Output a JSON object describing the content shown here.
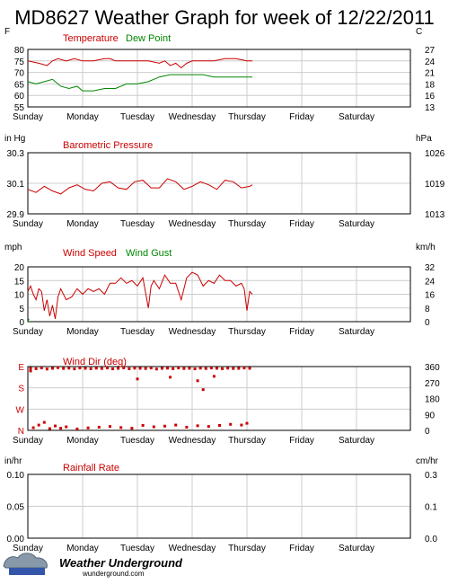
{
  "title": "MD8627 Weather Graph for week of 12/22/2011",
  "colors": {
    "red": "#cc0000",
    "green": "#008800",
    "grid": "#cccccc",
    "frame": "#000000"
  },
  "branding": {
    "name": "Weather Underground",
    "url": "wunderground.com"
  },
  "chart_data": [
    {
      "type": "line",
      "id": "temp",
      "left_unit": "F",
      "right_unit": "C",
      "series_labels": [
        "Temperature",
        "Dew Point"
      ],
      "ylim": [
        55,
        80
      ],
      "y_ticks": [
        "55",
        "60",
        "65",
        "70",
        "75",
        "80"
      ],
      "right_ticks": [
        "13",
        "16",
        "18",
        "21",
        "24",
        "27"
      ],
      "x_tick_labels": [
        "Sunday",
        "Monday",
        "Tuesday",
        "Wednesday",
        "Thursday",
        "Friday",
        "Saturday"
      ],
      "grid": true,
      "series": [
        {
          "name": "Temperature",
          "color": "#cc0000",
          "x": [
            0,
            0.2,
            0.35,
            0.45,
            0.55,
            0.7,
            0.85,
            1.0,
            1.2,
            1.4,
            1.5,
            1.6,
            1.8,
            2.0,
            2.2,
            2.4,
            2.5,
            2.6,
            2.7,
            2.8,
            2.9,
            3.0,
            3.2,
            3.4,
            3.6,
            3.8,
            4.0,
            4.1
          ],
          "y": [
            75,
            74,
            73,
            75,
            76,
            75,
            76,
            75,
            75,
            76,
            76,
            75,
            75,
            75,
            75,
            74,
            75,
            73,
            74,
            72,
            74,
            75,
            75,
            75,
            76,
            76,
            75,
            75
          ]
        },
        {
          "name": "Dew Point",
          "color": "#008800",
          "x": [
            0,
            0.15,
            0.3,
            0.45,
            0.6,
            0.75,
            0.9,
            1.0,
            1.2,
            1.4,
            1.6,
            1.8,
            2.0,
            2.2,
            2.4,
            2.6,
            2.8,
            3.0,
            3.2,
            3.4,
            3.6,
            3.8,
            4.0,
            4.1
          ],
          "y": [
            66,
            65,
            66,
            67,
            64,
            63,
            64,
            62,
            62,
            63,
            63,
            65,
            65,
            66,
            68,
            69,
            69,
            69,
            69,
            68,
            68,
            68,
            68,
            68
          ]
        }
      ]
    },
    {
      "type": "line",
      "id": "pressure",
      "left_unit": "in Hg",
      "right_unit": "hPa",
      "series_labels": [
        "Barometric Pressure"
      ],
      "ylim": [
        29.9,
        30.3
      ],
      "y_ticks": [
        "29.9",
        "30.1",
        "30.3"
      ],
      "right_ticks": [
        "1013",
        "1019",
        "1026"
      ],
      "x_tick_labels": [
        "Sunday",
        "Monday",
        "Tuesday",
        "Wednesday",
        "Thursday",
        "Friday",
        "Saturday"
      ],
      "grid": true,
      "series": [
        {
          "name": "Barometric Pressure",
          "color": "#cc0000",
          "x": [
            0,
            0.15,
            0.3,
            0.45,
            0.6,
            0.75,
            0.9,
            1.05,
            1.2,
            1.35,
            1.5,
            1.65,
            1.8,
            1.95,
            2.1,
            2.25,
            2.4,
            2.55,
            2.7,
            2.85,
            3.0,
            3.15,
            3.3,
            3.45,
            3.6,
            3.75,
            3.9,
            4.05,
            4.1
          ],
          "y": [
            30.06,
            30.04,
            30.08,
            30.05,
            30.03,
            30.07,
            30.09,
            30.06,
            30.05,
            30.1,
            30.11,
            30.07,
            30.06,
            30.11,
            30.12,
            30.07,
            30.07,
            30.13,
            30.11,
            30.06,
            30.08,
            30.11,
            30.09,
            30.06,
            30.12,
            30.11,
            30.07,
            30.08,
            30.09
          ]
        }
      ]
    },
    {
      "type": "line",
      "id": "wind",
      "left_unit": "mph",
      "right_unit": "km/h",
      "series_labels": [
        "Wind Speed",
        "Wind Gust"
      ],
      "ylim": [
        0,
        20
      ],
      "y_ticks": [
        "0",
        "5",
        "10",
        "15",
        "20"
      ],
      "right_ticks": [
        "0",
        "8",
        "16",
        "24",
        "32"
      ],
      "x_tick_labels": [
        "Sunday",
        "Monday",
        "Tuesday",
        "Wednesday",
        "Thursday",
        "Friday",
        "Saturday"
      ],
      "grid": true,
      "series": [
        {
          "name": "Wind Speed",
          "color": "#cc0000",
          "x": [
            0,
            0.05,
            0.1,
            0.15,
            0.2,
            0.25,
            0.3,
            0.35,
            0.4,
            0.45,
            0.5,
            0.55,
            0.6,
            0.7,
            0.8,
            0.9,
            1.0,
            1.1,
            1.2,
            1.3,
            1.4,
            1.5,
            1.6,
            1.7,
            1.8,
            1.9,
            2.0,
            2.1,
            2.2,
            2.25,
            2.3,
            2.4,
            2.5,
            2.6,
            2.7,
            2.8,
            2.9,
            3.0,
            3.1,
            3.2,
            3.3,
            3.4,
            3.5,
            3.6,
            3.7,
            3.8,
            3.9,
            3.95,
            4.0,
            4.05,
            4.1
          ],
          "y": [
            11,
            13,
            10,
            8,
            12,
            11,
            4,
            8,
            2,
            6,
            1,
            9,
            12,
            8,
            9,
            12,
            10,
            12,
            11,
            12,
            10,
            14,
            14,
            16,
            14,
            15,
            13,
            16,
            5,
            13,
            15,
            12,
            17,
            14,
            14,
            8,
            16,
            18,
            17,
            13,
            15,
            14,
            17,
            15,
            15,
            13,
            14,
            12,
            4,
            11,
            10
          ]
        },
        {
          "name": "Wind Gust",
          "color": "#008800",
          "x": [
            0,
            0.02
          ],
          "y": [
            0,
            1
          ]
        }
      ]
    },
    {
      "type": "scatter",
      "id": "winddir",
      "left_unit": "",
      "right_unit": "",
      "series_labels": [
        "Wind Dir (deg)"
      ],
      "ylim": [
        0,
        360
      ],
      "y_ticks": [
        "N",
        "W",
        "S",
        "E"
      ],
      "right_ticks": [
        "0",
        "90",
        "180",
        "270",
        "360"
      ],
      "x_tick_labels": [
        "Sunday",
        "Monday",
        "Tuesday",
        "Wednesday",
        "Thursday",
        "Friday",
        "Saturday"
      ],
      "grid": true,
      "series": [
        {
          "name": "Wind Dir (deg)",
          "color": "#cc0000",
          "x": [
            0.05,
            0.15,
            0.25,
            0.35,
            0.45,
            0.55,
            0.65,
            0.75,
            0.85,
            0.95,
            1.05,
            1.15,
            1.25,
            1.35,
            1.45,
            1.55,
            1.65,
            1.75,
            1.85,
            1.95,
            2.05,
            2.15,
            2.25,
            2.35,
            2.45,
            2.55,
            2.65,
            2.75,
            2.85,
            2.95,
            3.05,
            3.15,
            3.25,
            3.35,
            3.45,
            3.55,
            3.65,
            3.75,
            3.85,
            3.95,
            4.05,
            0.1,
            0.2,
            0.3,
            0.4,
            0.5,
            0.6,
            0.7,
            0.9,
            1.1,
            1.3,
            1.5,
            1.7,
            1.9,
            2.1,
            2.3,
            2.5,
            2.7,
            2.9,
            3.1,
            3.3,
            3.5,
            3.7,
            3.9,
            4.0,
            0.05,
            2.0,
            2.6,
            3.1,
            3.4,
            3.2
          ],
          "y": [
            350,
            348,
            352,
            346,
            350,
            354,
            349,
            351,
            347,
            352,
            350,
            348,
            351,
            349,
            352,
            347,
            350,
            353,
            348,
            351,
            350,
            349,
            352,
            346,
            350,
            351,
            348,
            352,
            349,
            350,
            347,
            351,
            349,
            352,
            350,
            348,
            351,
            349,
            350,
            352,
            350,
            15,
            30,
            45,
            10,
            25,
            12,
            20,
            8,
            14,
            18,
            22,
            16,
            12,
            28,
            20,
            24,
            30,
            18,
            26,
            22,
            28,
            34,
            30,
            40,
            335,
            290,
            300,
            280,
            305,
            230
          ]
        }
      ]
    },
    {
      "type": "line",
      "id": "rain",
      "left_unit": "in/hr",
      "right_unit": "cm/hr",
      "series_labels": [
        "Rainfall Rate"
      ],
      "ylim": [
        0,
        0.1
      ],
      "y_ticks": [
        "0.00",
        "0.05",
        "0.10"
      ],
      "right_ticks": [
        "0.0",
        "0.1",
        "0.3"
      ],
      "x_tick_labels": [
        "Sunday",
        "Monday",
        "Tuesday",
        "Wednesday",
        "Thursday",
        "Friday",
        "Saturday"
      ],
      "grid": true,
      "series": []
    }
  ]
}
